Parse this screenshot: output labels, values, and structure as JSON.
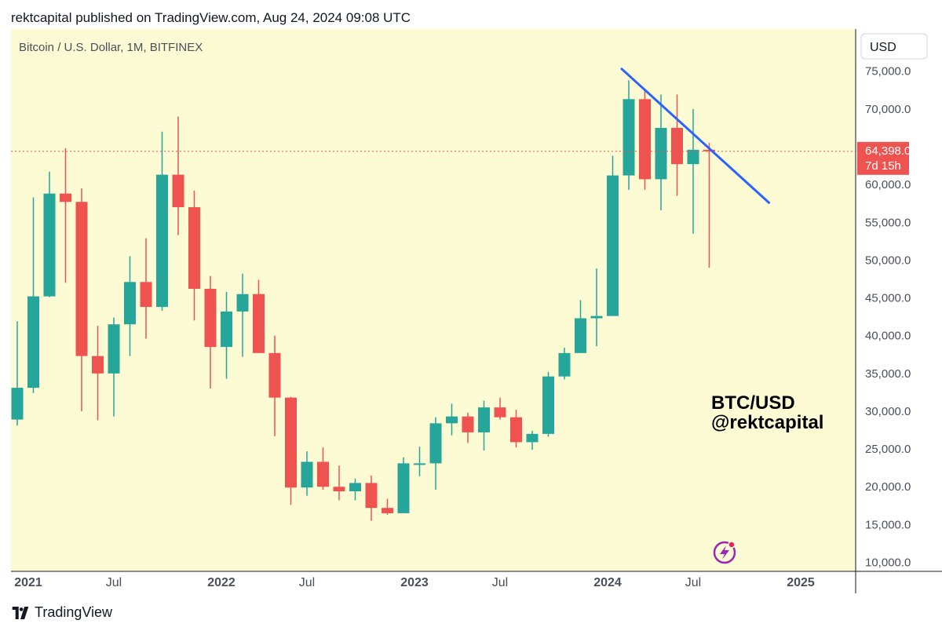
{
  "header": {
    "published_text": "rektcapital published on TradingView.com, Aug 24, 2024 09:08 UTC"
  },
  "symbol_title": "Bitcoin / U.S. Dollar, 1M, BITFINEX",
  "currency_label": "USD",
  "price_label": {
    "price": "64,398.0",
    "countdown": "7d 15h"
  },
  "watermark": {
    "line1": "BTC/USD",
    "line2": "@rektcapital"
  },
  "footer": {
    "brand": "TradingView"
  },
  "colors": {
    "background": "#fdfbd4",
    "up": "#26a69a",
    "down": "#ef5350",
    "trendline": "#2962ff",
    "price_line": "#ef5350",
    "axis_text": "#4a4f5c"
  },
  "chart_data": {
    "type": "candlestick",
    "title": "Bitcoin / U.S. Dollar, 1M, BITFINEX",
    "ylim": [
      10000,
      77500
    ],
    "y_ticks": [
      10000,
      15000,
      20000,
      25000,
      30000,
      35000,
      40000,
      45000,
      50000,
      55000,
      60000,
      65000,
      70000,
      75000
    ],
    "y_tick_labels": [
      "10,000.0",
      "15,000.0",
      "20,000.0",
      "25,000.0",
      "30,000.0",
      "35,000.0",
      "40,000.0",
      "45,000.0",
      "50,000.0",
      "55,000.0",
      "60,000.0",
      "65,000.0",
      "70,000.0",
      "75,000.0"
    ],
    "x_ticks": [
      {
        "index": 0,
        "label": "2021"
      },
      {
        "index": 6,
        "label": "Jul"
      },
      {
        "index": 12,
        "label": "2022"
      },
      {
        "index": 18,
        "label": "Jul"
      },
      {
        "index": 24,
        "label": "2023"
      },
      {
        "index": 30,
        "label": "Jul"
      },
      {
        "index": 36,
        "label": "2024"
      },
      {
        "index": 42,
        "label": "Jul"
      },
      {
        "index": 48,
        "label": "2025"
      }
    ],
    "candles": [
      {
        "month": "2021-01",
        "o": 28900,
        "h": 41900,
        "l": 28100,
        "c": 33100
      },
      {
        "month": "2021-02",
        "o": 33100,
        "h": 58300,
        "l": 32400,
        "c": 45200
      },
      {
        "month": "2021-03",
        "o": 45200,
        "h": 61700,
        "l": 45100,
        "c": 58800
      },
      {
        "month": "2021-04",
        "o": 58800,
        "h": 64800,
        "l": 47000,
        "c": 57700
      },
      {
        "month": "2021-05",
        "o": 57700,
        "h": 59500,
        "l": 30000,
        "c": 37300
      },
      {
        "month": "2021-06",
        "o": 37300,
        "h": 41300,
        "l": 28800,
        "c": 35000
      },
      {
        "month": "2021-07",
        "o": 35000,
        "h": 42400,
        "l": 29300,
        "c": 41500
      },
      {
        "month": "2021-08",
        "o": 41500,
        "h": 50500,
        "l": 37300,
        "c": 47100
      },
      {
        "month": "2021-09",
        "o": 47100,
        "h": 52900,
        "l": 39600,
        "c": 43800
      },
      {
        "month": "2021-10",
        "o": 43800,
        "h": 67000,
        "l": 43300,
        "c": 61300
      },
      {
        "month": "2021-11",
        "o": 61300,
        "h": 69000,
        "l": 53300,
        "c": 57000
      },
      {
        "month": "2021-12",
        "o": 57000,
        "h": 59200,
        "l": 42000,
        "c": 46200
      },
      {
        "month": "2022-01",
        "o": 46200,
        "h": 47900,
        "l": 33000,
        "c": 38500
      },
      {
        "month": "2022-02",
        "o": 38500,
        "h": 45800,
        "l": 34300,
        "c": 43200
      },
      {
        "month": "2022-03",
        "o": 43200,
        "h": 48200,
        "l": 37200,
        "c": 45500
      },
      {
        "month": "2022-04",
        "o": 45500,
        "h": 47400,
        "l": 37700,
        "c": 37700
      },
      {
        "month": "2022-05",
        "o": 37700,
        "h": 40000,
        "l": 26700,
        "c": 31800
      },
      {
        "month": "2022-06",
        "o": 31800,
        "h": 31900,
        "l": 17600,
        "c": 19900
      },
      {
        "month": "2022-07",
        "o": 19900,
        "h": 24700,
        "l": 18800,
        "c": 23300
      },
      {
        "month": "2022-08",
        "o": 23300,
        "h": 25200,
        "l": 19600,
        "c": 20000
      },
      {
        "month": "2022-09",
        "o": 20000,
        "h": 22800,
        "l": 18200,
        "c": 19400
      },
      {
        "month": "2022-10",
        "o": 19400,
        "h": 21100,
        "l": 18200,
        "c": 20500
      },
      {
        "month": "2022-11",
        "o": 20500,
        "h": 21500,
        "l": 15500,
        "c": 17200
      },
      {
        "month": "2022-12",
        "o": 17200,
        "h": 18400,
        "l": 16300,
        "c": 16500
      },
      {
        "month": "2023-01",
        "o": 16500,
        "h": 23900,
        "l": 16500,
        "c": 23100
      },
      {
        "month": "2023-02",
        "o": 23100,
        "h": 25300,
        "l": 21400,
        "c": 23100
      },
      {
        "month": "2023-03",
        "o": 23100,
        "h": 29200,
        "l": 19600,
        "c": 28400
      },
      {
        "month": "2023-04",
        "o": 28400,
        "h": 31000,
        "l": 26800,
        "c": 29300
      },
      {
        "month": "2023-05",
        "o": 29300,
        "h": 29800,
        "l": 25800,
        "c": 27200
      },
      {
        "month": "2023-06",
        "o": 27200,
        "h": 31400,
        "l": 24800,
        "c": 30500
      },
      {
        "month": "2023-07",
        "o": 30500,
        "h": 31800,
        "l": 28900,
        "c": 29200
      },
      {
        "month": "2023-08",
        "o": 29200,
        "h": 30200,
        "l": 25200,
        "c": 25900
      },
      {
        "month": "2023-09",
        "o": 25900,
        "h": 27400,
        "l": 24900,
        "c": 27000
      },
      {
        "month": "2023-10",
        "o": 27000,
        "h": 35200,
        "l": 26600,
        "c": 34600
      },
      {
        "month": "2023-11",
        "o": 34600,
        "h": 38400,
        "l": 34200,
        "c": 37700
      },
      {
        "month": "2023-12",
        "o": 37700,
        "h": 44700,
        "l": 37700,
        "c": 42300
      },
      {
        "month": "2024-01",
        "o": 42300,
        "h": 48900,
        "l": 38600,
        "c": 42600
      },
      {
        "month": "2024-02",
        "o": 42600,
        "h": 63800,
        "l": 42800,
        "c": 61200
      },
      {
        "month": "2024-03",
        "o": 61200,
        "h": 73800,
        "l": 59300,
        "c": 71300
      },
      {
        "month": "2024-04",
        "o": 71300,
        "h": 72700,
        "l": 59300,
        "c": 60700
      },
      {
        "month": "2024-05",
        "o": 60700,
        "h": 71900,
        "l": 56600,
        "c": 67500
      },
      {
        "month": "2024-06",
        "o": 67500,
        "h": 71900,
        "l": 58500,
        "c": 62700
      },
      {
        "month": "2024-07",
        "o": 62700,
        "h": 70000,
        "l": 53500,
        "c": 64600
      },
      {
        "month": "2024-08",
        "o": 64600,
        "h": 65500,
        "l": 49000,
        "c": 64398
      }
    ],
    "current_price": 64398,
    "trendline": {
      "start": {
        "month": "2024-03",
        "price": 75300
      },
      "end": {
        "month": "2024-12",
        "price": 57600
      }
    }
  }
}
